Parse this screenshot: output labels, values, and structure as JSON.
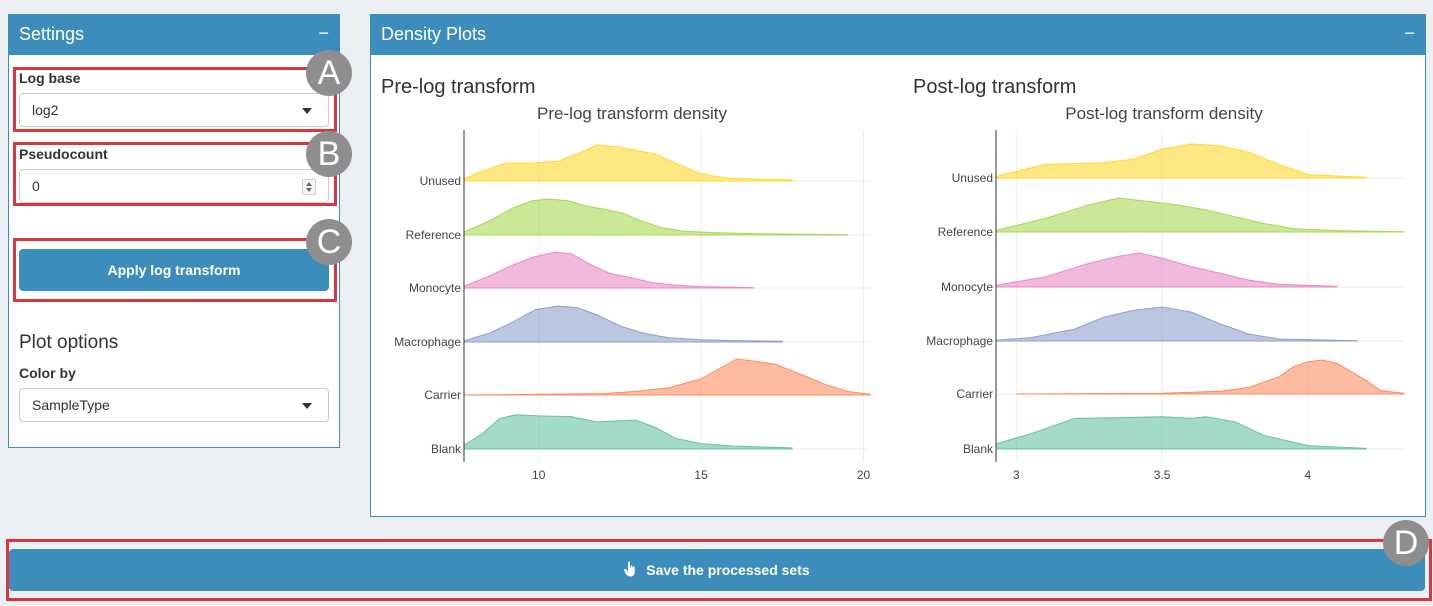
{
  "settings": {
    "title": "Settings",
    "collapse_icon": "−",
    "log_base_label": "Log base",
    "log_base_value": "log2",
    "pseudocount_label": "Pseudocount",
    "pseudocount_value": "0",
    "apply_button": "Apply log transform",
    "plot_options_heading": "Plot options",
    "color_by_label": "Color by",
    "color_by_value": "SampleType"
  },
  "density": {
    "title": "Density Plots",
    "collapse_icon": "−",
    "pre_heading": "Pre-log transform",
    "post_heading": "Post-log transform"
  },
  "save_button": {
    "label": "Save the processed sets",
    "icon": "hand-pointer-icon"
  },
  "annotations": {
    "A": "A",
    "B": "B",
    "C": "C",
    "D": "D"
  },
  "colors": {
    "accent": "#3c8dbc",
    "highlight": "#d9363e",
    "Unused": "#ffd92f",
    "Reference": "#a6d854",
    "Monocyte": "#e78ac3",
    "Macrophage": "#8da0cb",
    "Carrier": "#fc8d62",
    "Blank": "#66c2a5"
  },
  "chart_data": [
    {
      "type": "area",
      "title": "Pre-log transform density",
      "xlim": [
        7.7,
        20.2
      ],
      "ticks": [
        10,
        15,
        20
      ],
      "categories": [
        "Unused",
        "Reference",
        "Monocyte",
        "Macrophage",
        "Carrier",
        "Blank"
      ],
      "series": [
        {
          "name": "Unused",
          "x": [
            7.7,
            8.2,
            9.0,
            9.8,
            10.6,
            11.2,
            11.8,
            12.4,
            13.0,
            13.6,
            14.2,
            15.0,
            15.8,
            16.8,
            17.8
          ],
          "y": [
            0.05,
            0.25,
            0.5,
            0.5,
            0.55,
            0.75,
            1.0,
            0.95,
            0.85,
            0.75,
            0.5,
            0.2,
            0.08,
            0.05,
            0.03
          ]
        },
        {
          "name": "Reference",
          "x": [
            7.7,
            8.5,
            9.2,
            9.8,
            10.3,
            10.9,
            11.5,
            12.0,
            12.6,
            13.2,
            13.8,
            14.5,
            15.5,
            17.0,
            19.5
          ],
          "y": [
            0.08,
            0.4,
            0.75,
            0.95,
            1.0,
            0.95,
            0.8,
            0.72,
            0.6,
            0.38,
            0.2,
            0.1,
            0.06,
            0.03,
            0.01
          ]
        },
        {
          "name": "Monocyte",
          "x": [
            7.7,
            8.4,
            9.1,
            9.8,
            10.5,
            11.0,
            11.6,
            12.2,
            12.8,
            13.5,
            14.2,
            15.0,
            16.6
          ],
          "y": [
            0.05,
            0.3,
            0.6,
            0.85,
            1.0,
            0.95,
            0.65,
            0.4,
            0.3,
            0.15,
            0.08,
            0.04,
            0.01
          ]
        },
        {
          "name": "Macrophage",
          "x": [
            7.7,
            8.5,
            9.2,
            9.9,
            10.6,
            11.2,
            11.8,
            12.5,
            13.2,
            14.0,
            15.0,
            16.0,
            17.5
          ],
          "y": [
            0.03,
            0.25,
            0.55,
            0.9,
            1.0,
            0.95,
            0.75,
            0.45,
            0.25,
            0.12,
            0.06,
            0.04,
            0.02
          ]
        },
        {
          "name": "Carrier",
          "x": [
            7.7,
            10.0,
            12.0,
            13.0,
            14.0,
            15.0,
            15.6,
            16.1,
            16.8,
            17.3,
            18.0,
            18.8,
            19.5,
            20.2
          ],
          "y": [
            0.0,
            0.02,
            0.04,
            0.1,
            0.2,
            0.45,
            0.75,
            1.0,
            0.92,
            0.85,
            0.6,
            0.3,
            0.1,
            0.02
          ]
        },
        {
          "name": "Blank",
          "x": [
            7.7,
            8.3,
            8.8,
            9.3,
            10.0,
            11.0,
            11.8,
            12.4,
            13.0,
            13.6,
            14.2,
            15.0,
            16.0,
            17.8
          ],
          "y": [
            0.1,
            0.45,
            0.85,
            0.95,
            0.92,
            0.9,
            0.75,
            0.78,
            0.8,
            0.6,
            0.3,
            0.15,
            0.08,
            0.03
          ]
        }
      ]
    },
    {
      "type": "area",
      "title": "Post-log transform density",
      "xlim": [
        2.93,
        4.33
      ],
      "ticks": [
        3,
        3.5,
        4
      ],
      "categories": [
        "Unused",
        "Reference",
        "Monocyte",
        "Macrophage",
        "Carrier",
        "Blank"
      ],
      "series": [
        {
          "name": "Unused",
          "x": [
            2.93,
            3.1,
            3.3,
            3.4,
            3.5,
            3.6,
            3.7,
            3.8,
            3.9,
            4.0,
            4.2
          ],
          "y": [
            0.05,
            0.4,
            0.45,
            0.55,
            0.85,
            1.0,
            0.95,
            0.75,
            0.4,
            0.1,
            0.02
          ]
        },
        {
          "name": "Reference",
          "x": [
            2.93,
            3.1,
            3.25,
            3.35,
            3.45,
            3.55,
            3.65,
            3.75,
            3.85,
            3.95,
            4.1,
            4.33
          ],
          "y": [
            0.05,
            0.4,
            0.8,
            1.0,
            0.9,
            0.8,
            0.65,
            0.45,
            0.25,
            0.1,
            0.04,
            0.01
          ]
        },
        {
          "name": "Monocyte",
          "x": [
            2.93,
            3.1,
            3.25,
            3.35,
            3.42,
            3.5,
            3.6,
            3.7,
            3.8,
            3.9,
            4.1
          ],
          "y": [
            0.05,
            0.3,
            0.7,
            0.9,
            1.0,
            0.85,
            0.6,
            0.4,
            0.2,
            0.08,
            0.02
          ]
        },
        {
          "name": "Macrophage",
          "x": [
            2.93,
            3.05,
            3.2,
            3.3,
            3.4,
            3.5,
            3.6,
            3.7,
            3.8,
            3.9,
            4.17
          ],
          "y": [
            0.02,
            0.1,
            0.35,
            0.7,
            0.9,
            1.0,
            0.85,
            0.5,
            0.2,
            0.06,
            0.01
          ]
        },
        {
          "name": "Carrier",
          "x": [
            3.0,
            3.5,
            3.7,
            3.8,
            3.9,
            3.95,
            4.0,
            4.05,
            4.1,
            4.2,
            4.25,
            4.33
          ],
          "y": [
            0.0,
            0.02,
            0.08,
            0.2,
            0.5,
            0.8,
            0.95,
            1.0,
            0.9,
            0.4,
            0.1,
            0.02
          ]
        },
        {
          "name": "Blank",
          "x": [
            2.93,
            3.05,
            3.2,
            3.35,
            3.5,
            3.6,
            3.65,
            3.75,
            3.85,
            4.0,
            4.2
          ],
          "y": [
            0.15,
            0.45,
            0.9,
            0.92,
            0.95,
            0.9,
            0.95,
            0.8,
            0.4,
            0.1,
            0.02
          ]
        }
      ]
    }
  ]
}
